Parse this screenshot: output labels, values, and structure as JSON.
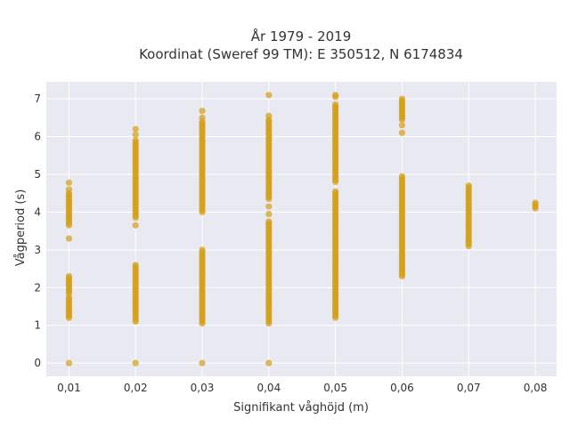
{
  "chart_data": {
    "type": "scatter",
    "title": "År 1979 - 2019",
    "subtitle": "Koordinat (Sweref 99 TM): E 350512, N 6174834",
    "xlabel": "Signifikant våghöjd (m)",
    "ylabel": "Vågperiod (s)",
    "xlim": [
      0.0066,
      0.0832
    ],
    "ylim": [
      -0.35,
      7.45
    ],
    "x_ticks": [
      "0,01",
      "0,02",
      "0,03",
      "0,04",
      "0,05",
      "0,06",
      "0,07",
      "0,08"
    ],
    "y_ticks": [
      "0",
      "1",
      "2",
      "3",
      "4",
      "5",
      "6",
      "7"
    ],
    "grid": true,
    "background": "#e9e9f2",
    "marker_color": "#d4a017",
    "series": [
      {
        "points": [
          {
            "x": 0.01,
            "y": 0.0
          },
          {
            "x": 0.01,
            "y": [
              1.2,
              1.75
            ]
          },
          {
            "x": 0.01,
            "y": [
              1.85,
              2.3
            ]
          },
          {
            "x": 0.01,
            "y": 3.3
          },
          {
            "x": 0.01,
            "y": [
              3.65,
              4.5
            ]
          },
          {
            "x": 0.01,
            "y": 4.6
          },
          {
            "x": 0.01,
            "y": 4.78
          },
          {
            "x": 0.02,
            "y": 0.0
          },
          {
            "x": 0.02,
            "y": [
              1.1,
              2.6
            ]
          },
          {
            "x": 0.02,
            "y": 3.65
          },
          {
            "x": 0.02,
            "y": [
              3.85,
              5.9
            ]
          },
          {
            "x": 0.02,
            "y": 6.05
          },
          {
            "x": 0.02,
            "y": 6.2
          },
          {
            "x": 0.03,
            "y": 0.0
          },
          {
            "x": 0.03,
            "y": [
              1.05,
              3.0
            ]
          },
          {
            "x": 0.03,
            "y": [
              4.0,
              6.4
            ]
          },
          {
            "x": 0.03,
            "y": 6.5
          },
          {
            "x": 0.03,
            "y": 6.68
          },
          {
            "x": 0.04,
            "y": 0.0
          },
          {
            "x": 0.04,
            "y": [
              1.05,
              3.75
            ]
          },
          {
            "x": 0.04,
            "y": 3.95
          },
          {
            "x": 0.04,
            "y": 4.15
          },
          {
            "x": 0.04,
            "y": [
              4.35,
              6.45
            ]
          },
          {
            "x": 0.04,
            "y": 6.55
          },
          {
            "x": 0.04,
            "y": 7.1
          },
          {
            "x": 0.05,
            "y": [
              1.2,
              4.55
            ]
          },
          {
            "x": 0.05,
            "y": [
              4.8,
              6.85
            ]
          },
          {
            "x": 0.05,
            "y": 7.05
          },
          {
            "x": 0.05,
            "y": 7.1
          },
          {
            "x": 0.06,
            "y": [
              2.3,
              4.95
            ]
          },
          {
            "x": 0.06,
            "y": 6.1
          },
          {
            "x": 0.06,
            "y": 6.3
          },
          {
            "x": 0.06,
            "y": [
              6.45,
              7.0
            ]
          },
          {
            "x": 0.07,
            "y": [
              3.1,
              4.7
            ]
          },
          {
            "x": 0.08,
            "y": [
              4.1,
              4.25
            ]
          }
        ]
      }
    ]
  }
}
